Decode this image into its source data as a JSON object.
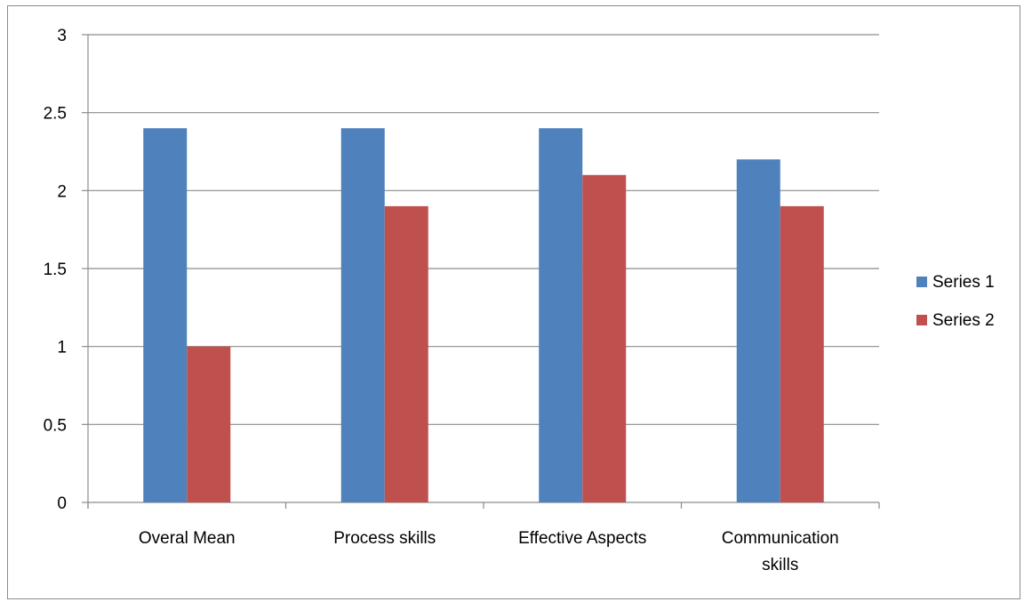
{
  "chart_data": {
    "type": "bar",
    "categories": [
      "Overal Mean",
      "Process skills",
      "Effective Aspects",
      "Communication skills"
    ],
    "category_lines": [
      [
        "Overal Mean"
      ],
      [
        "Process skills"
      ],
      [
        "Effective Aspects"
      ],
      [
        "Communication",
        "skills"
      ]
    ],
    "series": [
      {
        "name": "Series 1",
        "values": [
          2.4,
          2.4,
          2.4,
          2.2
        ],
        "color": "#4F81BD"
      },
      {
        "name": "Series 2",
        "values": [
          1.0,
          1.9,
          2.1,
          1.9
        ],
        "color": "#C0504D"
      }
    ],
    "yticks": [
      "0",
      "0.5",
      "1",
      "1.5",
      "2",
      "2.5",
      "3"
    ],
    "ylim": [
      0,
      3
    ],
    "grid": true,
    "legend_position": "right",
    "title": "",
    "xlabel": "",
    "ylabel": ""
  }
}
